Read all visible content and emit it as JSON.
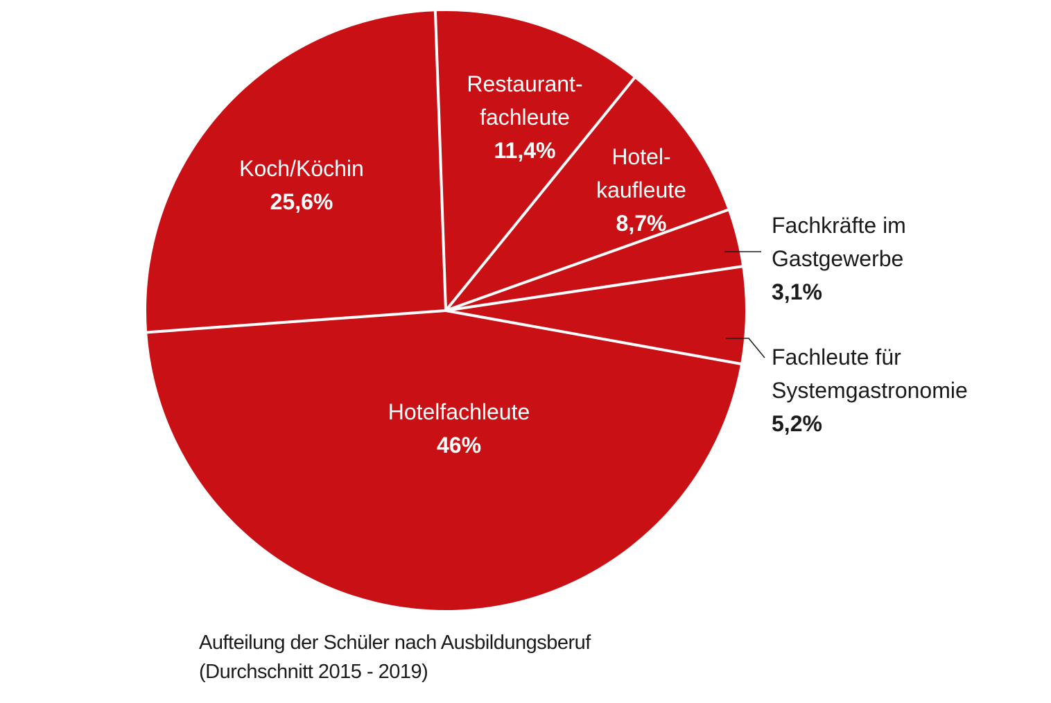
{
  "chart_data": {
    "type": "pie",
    "slices": [
      {
        "name": "Restaurant-fachleute",
        "lines": [
          "Restaurant-",
          "fachleute"
        ],
        "value": 11.4,
        "label": "11,4%"
      },
      {
        "name": "Hotel-kaufleute",
        "lines": [
          "Hotel-",
          "kaufleute"
        ],
        "value": 8.7,
        "label": "8,7%"
      },
      {
        "name": "Fachkräfte im Gastgewerbe",
        "lines": [
          "Fachkräfte im",
          "Gastgewerbe"
        ],
        "value": 3.1,
        "label": "3,1%"
      },
      {
        "name": "Fachleute für Systemgastronomie",
        "lines": [
          "Fachleute für",
          "Systemgastronomie"
        ],
        "value": 5.2,
        "label": "5,2%"
      },
      {
        "name": "Hotelfachleute",
        "lines": [
          "Hotelfachleute"
        ],
        "value": 46,
        "label": "46%"
      },
      {
        "name": "Koch/Köchin",
        "lines": [
          "Koch/Köchin"
        ],
        "value": 25.6,
        "label": "25,6%"
      }
    ],
    "colors": {
      "slice": "#c91014",
      "separator": "#ffffff",
      "text_inside": "#ffffff",
      "text_outside": "#1a1a1a"
    }
  },
  "caption": {
    "line1": "Aufteilung der Schüler nach Ausbildungsberuf",
    "line2": "(Durchschnitt 2015 - 2019)"
  }
}
